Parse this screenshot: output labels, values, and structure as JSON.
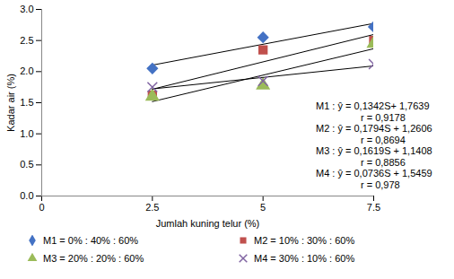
{
  "chart_data": {
    "type": "scatter",
    "x_label": "Jumlah kuning telur (%)",
    "y_label": "Kadar air (%)",
    "x": [
      2.5,
      5,
      7.5
    ],
    "series": [
      {
        "name": "M1 = 0% : 40% : 60%",
        "color": "#4472c4",
        "marker": "diamond",
        "values": [
          2.05,
          2.55,
          2.72
        ]
      },
      {
        "name": "M2 = 10% : 30% : 60%",
        "color": "#c0504d",
        "marker": "square",
        "values": [
          1.62,
          2.35,
          2.5
        ]
      },
      {
        "name": "M3 = 20% : 20% : 60%",
        "color": "#9bbb59",
        "marker": "triangle",
        "values": [
          1.6,
          1.78,
          2.45
        ]
      },
      {
        "name": "M4 = 30% : 10% : 60%",
        "color": "#8064a2",
        "marker": "x",
        "values": [
          1.75,
          1.85,
          2.12
        ]
      }
    ],
    "annotations": [
      "M1 : ŷ  = 0,1342S+ 1,7639",
      "r = 0,9178",
      "M2 : ŷ = 0,1794S + 1,2606",
      "r = 0,8694",
      "M3 : ŷ = 0,1619S + 1,1408",
      "r = 0,8856",
      "M4 : ŷ = 0,0736S + 1,5459",
      "r = 0,978"
    ],
    "xlim": [
      0,
      7.5
    ],
    "xticks": [
      0,
      2.5,
      5,
      7.5
    ],
    "ylim": [
      0,
      3
    ],
    "yticks": [
      {
        "value": 0,
        "label": "0.0"
      },
      0.5,
      {
        "value": 1,
        "label": "1.0"
      },
      1.5,
      {
        "value": 2,
        "label": "2.0"
      },
      2.5,
      {
        "value": 3,
        "label": "3.0"
      }
    ],
    "grid": false,
    "legend": "bottom"
  }
}
